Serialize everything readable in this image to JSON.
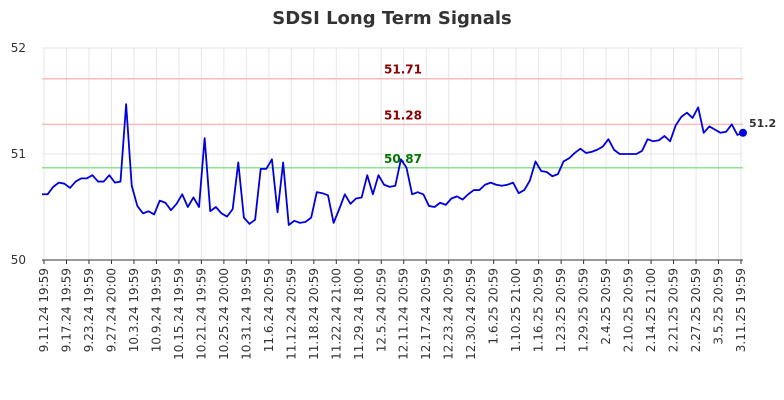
{
  "chart_data": {
    "type": "line",
    "title": "SDSI Long Term Signals",
    "xlabel": "",
    "ylabel": "",
    "ylim": [
      50,
      52
    ],
    "y_ticks": [
      "50",
      "51",
      "52"
    ],
    "x_tick_labels": [
      "9.11.24 19:59",
      "9.17.24 19:59",
      "9.23.24 19:59",
      "9.27.24 20:00",
      "10.3.24 19:59",
      "10.9.24 19:59",
      "10.15.24 19:59",
      "10.21.24 19:59",
      "10.25.24 20:00",
      "10.31.24 19:59",
      "11.6.24 20:59",
      "11.12.24 20:59",
      "11.18.24 20:59",
      "11.22.24 21:00",
      "11.29.24 18:00",
      "12.5.24 20:59",
      "12.11.24 20:59",
      "12.17.24 20:59",
      "12.23.24 20:59",
      "12.30.24 20:59",
      "1.6.25 20:59",
      "1.10.25 21:00",
      "1.16.25 20:59",
      "1.23.25 20:59",
      "1.29.25 20:59",
      "2.4.25 20:59",
      "2.10.25 20:59",
      "2.14.25 21:00",
      "2.21.25 20:59",
      "2.27.25 20:59",
      "3.5.25 20:59",
      "3.11.25 19:59"
    ],
    "grid": true,
    "line_color": "#0000dd",
    "series": [
      {
        "values": [
          50.62,
          50.62,
          50.69,
          50.73,
          50.72,
          50.68,
          50.74,
          50.77,
          50.77,
          50.8,
          50.74,
          50.74,
          50.8,
          50.73,
          50.74,
          51.47,
          50.7,
          50.51,
          50.44,
          50.46,
          50.43,
          50.56,
          50.54,
          50.47,
          50.53,
          50.62,
          50.5,
          50.59,
          50.5,
          51.15,
          50.46,
          50.5,
          50.44,
          50.41,
          50.48,
          50.92,
          50.4,
          50.34,
          50.38,
          50.86,
          50.86,
          50.95,
          50.45,
          50.92,
          50.33,
          50.37,
          50.35,
          50.36,
          50.4,
          50.64,
          50.63,
          50.61,
          50.35,
          50.48,
          50.62,
          50.53,
          50.58,
          50.59,
          50.8,
          50.62,
          50.8,
          50.71,
          50.69,
          50.7,
          50.95,
          50.87,
          50.62,
          50.64,
          50.62,
          50.51,
          50.5,
          50.54,
          50.52,
          50.58,
          50.6,
          50.57,
          50.62,
          50.66,
          50.66,
          50.71,
          50.73,
          50.71,
          50.7,
          50.71,
          50.73,
          50.63,
          50.66,
          50.75,
          50.93,
          50.84,
          50.83,
          50.79,
          50.81,
          50.93,
          50.96,
          51.01,
          51.05,
          51.01,
          51.02,
          51.04,
          51.07,
          51.14,
          51.04,
          51.0,
          51.0,
          51.0,
          51.0,
          51.03,
          51.14,
          51.12,
          51.13,
          51.17,
          51.12,
          51.27,
          51.35,
          51.39,
          51.34,
          51.44,
          51.2,
          51.26,
          51.23,
          51.2,
          51.21,
          51.28,
          51.18,
          51.2
        ]
      }
    ],
    "annotations": [
      {
        "label": "51.71",
        "value": 51.71,
        "line_color": "#ffbbbb",
        "text_color": "#8b0000"
      },
      {
        "label": "51.28",
        "value": 51.28,
        "line_color": "#ffbbbb",
        "text_color": "#8b0000"
      },
      {
        "label": "50.87",
        "value": 50.87,
        "line_color": "#90e090",
        "text_color": "#007700"
      }
    ],
    "last_value_label": "51.2"
  }
}
